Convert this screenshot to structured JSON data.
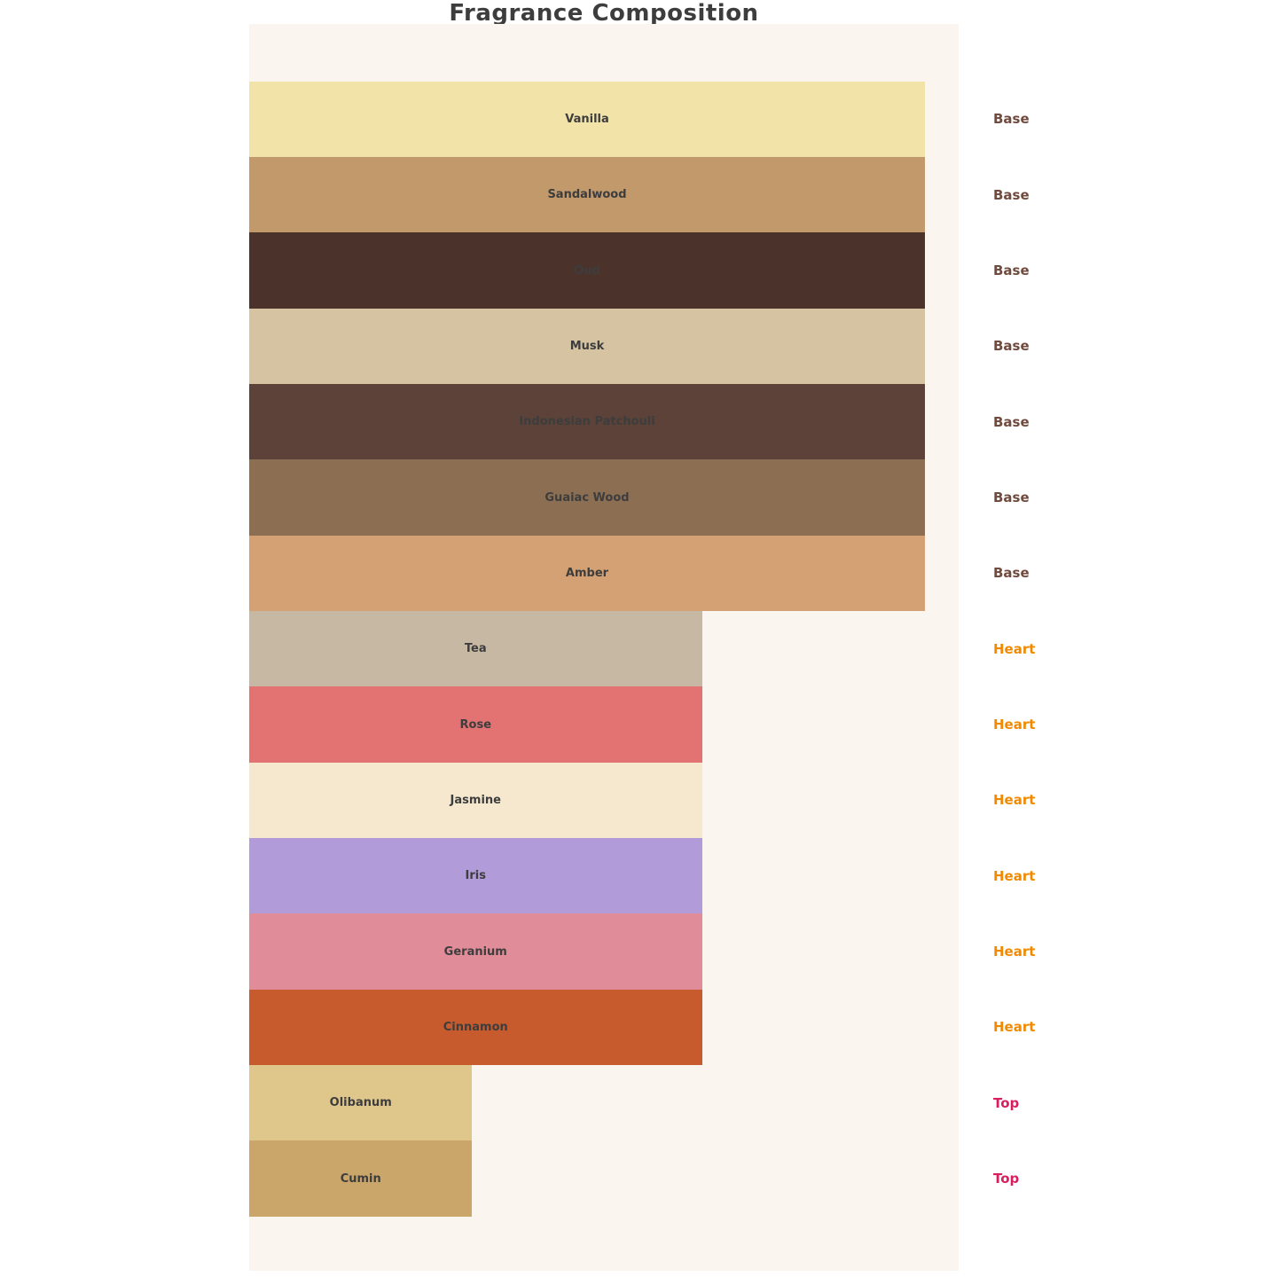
{
  "title": "Fragrance Composition",
  "chart_data": {
    "type": "bar",
    "orientation": "horizontal",
    "title": "Fragrance Composition",
    "categories": [
      "Vanilla",
      "Sandalwood",
      "Oud",
      "Musk",
      "Indonesian Patchouli",
      "Guaiac Wood",
      "Amber",
      "Tea",
      "Rose",
      "Jasmine",
      "Iris",
      "Geranium",
      "Cinnamon",
      "Olibanum",
      "Cumin"
    ],
    "values": [
      100,
      100,
      100,
      100,
      100,
      100,
      100,
      67,
      67,
      67,
      67,
      67,
      67,
      33,
      33
    ],
    "group_labels": [
      "Base",
      "Base",
      "Base",
      "Base",
      "Base",
      "Base",
      "Base",
      "Heart",
      "Heart",
      "Heart",
      "Heart",
      "Heart",
      "Heart",
      "Top",
      "Top"
    ],
    "bar_colors": [
      "#f2e4a8",
      "#c2996b",
      "#4b322b",
      "#d5c3a2",
      "#5c4238",
      "#8c6f53",
      "#d3a173",
      "#c6b8a3",
      "#e37273",
      "#f5e8cf",
      "#b19cd9",
      "#e18c99",
      "#c75b2d",
      "#dfc78c",
      "#caa66a"
    ],
    "bar_label_color": "#3d3d3d",
    "group_label_colors": {
      "Base": "#6f4a3d",
      "Heart": "#f08a00",
      "Top": "#d81e5f"
    },
    "background": "#faf6ef",
    "xlim": [
      0,
      100
    ],
    "grid": false,
    "legend": "none",
    "xlabel": "",
    "ylabel": ""
  }
}
